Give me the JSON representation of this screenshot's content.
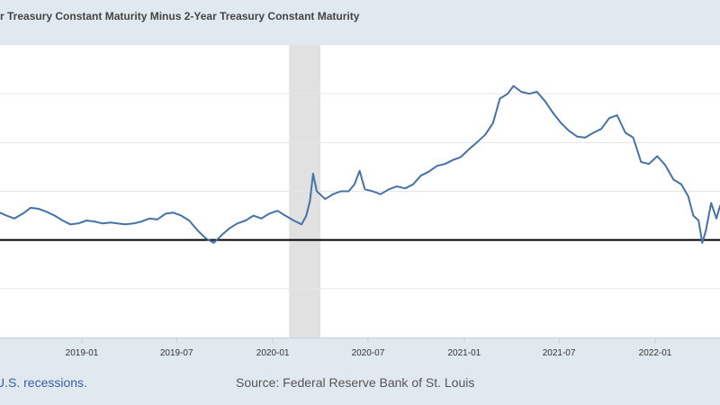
{
  "title": "r Treasury Constant Maturity Minus 2-Year Treasury Constant Maturity",
  "legend_recession": "U.S. recessions.",
  "source": "Source: Federal Reserve Bank of St. Louis",
  "chart_data": {
    "type": "line",
    "title": "r Treasury Constant Maturity Minus 2-Year Treasury Constant Maturity",
    "xlabel": "",
    "ylabel": "",
    "ylim": [
      -1.0,
      2.0
    ],
    "gridlines_y": [
      -0.5,
      0.5,
      1.0,
      1.5
    ],
    "zero_line": 0,
    "grid": true,
    "x_tick_labels": [
      "2019-01",
      "2019-07",
      "2020-01",
      "2020-07",
      "2021-01",
      "2021-07",
      "2022-01"
    ],
    "recessions": [
      {
        "start": "2020-02-01",
        "end": "2020-04-01"
      }
    ],
    "line_color": "#4572a7",
    "recession_color": "#e1e1e1",
    "series": [
      {
        "x": [
          "2018-07-28",
          "2018-08-10",
          "2018-08-25",
          "2018-09-10",
          "2018-09-25",
          "2018-10-10",
          "2018-10-25",
          "2018-11-10",
          "2018-11-25",
          "2018-12-10",
          "2018-12-25",
          "2019-01-10",
          "2019-01-25",
          "2019-02-10",
          "2019-02-25",
          "2019-03-10",
          "2019-03-25",
          "2019-04-10",
          "2019-04-25",
          "2019-05-10",
          "2019-05-25",
          "2019-06-10",
          "2019-06-25",
          "2019-07-10",
          "2019-07-25",
          "2019-08-10",
          "2019-08-25",
          "2019-09-10",
          "2019-09-25",
          "2019-10-10",
          "2019-10-25",
          "2019-11-10",
          "2019-11-25",
          "2019-12-10",
          "2019-12-25",
          "2020-01-10",
          "2020-01-25",
          "2020-02-10",
          "2020-02-25",
          "2020-03-05",
          "2020-03-12",
          "2020-03-18",
          "2020-03-25",
          "2020-04-10",
          "2020-04-25",
          "2020-05-10",
          "2020-05-25",
          "2020-06-05",
          "2020-06-15",
          "2020-06-25",
          "2020-07-10",
          "2020-07-25",
          "2020-08-10",
          "2020-08-25",
          "2020-09-10",
          "2020-09-25",
          "2020-10-10",
          "2020-10-25",
          "2020-11-10",
          "2020-11-25",
          "2020-12-10",
          "2020-12-25",
          "2021-01-10",
          "2021-01-25",
          "2021-02-10",
          "2021-02-25",
          "2021-03-10",
          "2021-03-25",
          "2021-04-05",
          "2021-04-20",
          "2021-05-05",
          "2021-05-20",
          "2021-06-05",
          "2021-06-20",
          "2021-07-05",
          "2021-07-20",
          "2021-08-05",
          "2021-08-20",
          "2021-09-05",
          "2021-09-20",
          "2021-10-05",
          "2021-10-20",
          "2021-11-05",
          "2021-11-20",
          "2021-12-05",
          "2021-12-20",
          "2022-01-05",
          "2022-01-20",
          "2022-02-05",
          "2022-02-20",
          "2022-03-05",
          "2022-03-15",
          "2022-03-25",
          "2022-04-01",
          "2022-04-08",
          "2022-04-18",
          "2022-04-28",
          "2022-05-05",
          "2022-05-12"
        ],
        "y": [
          0.28,
          0.25,
          0.22,
          0.27,
          0.33,
          0.32,
          0.29,
          0.25,
          0.2,
          0.16,
          0.17,
          0.2,
          0.19,
          0.17,
          0.18,
          0.17,
          0.16,
          0.17,
          0.19,
          0.22,
          0.21,
          0.27,
          0.28,
          0.25,
          0.2,
          0.1,
          0.02,
          -0.03,
          0.05,
          0.12,
          0.17,
          0.2,
          0.25,
          0.22,
          0.27,
          0.3,
          0.25,
          0.2,
          0.16,
          0.25,
          0.4,
          0.68,
          0.5,
          0.42,
          0.47,
          0.5,
          0.5,
          0.57,
          0.71,
          0.52,
          0.5,
          0.47,
          0.52,
          0.55,
          0.53,
          0.57,
          0.66,
          0.7,
          0.76,
          0.78,
          0.82,
          0.85,
          0.93,
          1.0,
          1.08,
          1.2,
          1.45,
          1.5,
          1.58,
          1.52,
          1.5,
          1.52,
          1.42,
          1.3,
          1.2,
          1.12,
          1.06,
          1.05,
          1.1,
          1.14,
          1.25,
          1.28,
          1.1,
          1.05,
          0.8,
          0.78,
          0.86,
          0.77,
          0.62,
          0.57,
          0.45,
          0.25,
          0.2,
          -0.03,
          0.1,
          0.38,
          0.22,
          0.35,
          0.3
        ]
      }
    ]
  }
}
